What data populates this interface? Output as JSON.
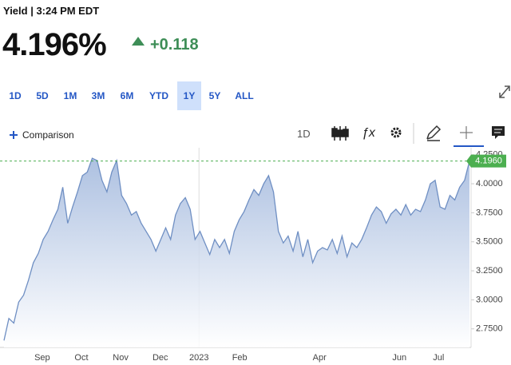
{
  "header": {
    "title": "Yield | 3:24 PM EDT",
    "price": "4.196%",
    "change": "+0.118"
  },
  "ranges": [
    {
      "label": "1D",
      "selected": false
    },
    {
      "label": "5D",
      "selected": false
    },
    {
      "label": "1M",
      "selected": false
    },
    {
      "label": "3M",
      "selected": false
    },
    {
      "label": "6M",
      "selected": false
    },
    {
      "label": "YTD",
      "selected": false
    },
    {
      "label": "1Y",
      "selected": true
    },
    {
      "label": "5Y",
      "selected": false
    },
    {
      "label": "ALL",
      "selected": false
    }
  ],
  "toolbar": {
    "comparison": "Comparison",
    "interval": "1D"
  },
  "chart_data": {
    "type": "area",
    "color": "#6f8fc3",
    "grid": false,
    "values": [
      2.65,
      2.84,
      2.8,
      2.98,
      3.04,
      3.17,
      3.32,
      3.4,
      3.52,
      3.59,
      3.69,
      3.78,
      3.97,
      3.66,
      3.8,
      3.93,
      4.07,
      4.1,
      4.22,
      4.2,
      4.03,
      3.93,
      4.1,
      4.2,
      3.9,
      3.83,
      3.73,
      3.76,
      3.66,
      3.59,
      3.52,
      3.42,
      3.52,
      3.62,
      3.52,
      3.73,
      3.83,
      3.88,
      3.78,
      3.52,
      3.59,
      3.49,
      3.39,
      3.52,
      3.45,
      3.52,
      3.4,
      3.59,
      3.69,
      3.76,
      3.86,
      3.95,
      3.9,
      4.0,
      4.07,
      3.93,
      3.59,
      3.49,
      3.55,
      3.42,
      3.59,
      3.37,
      3.52,
      3.32,
      3.42,
      3.45,
      3.43,
      3.52,
      3.4,
      3.55,
      3.37,
      3.49,
      3.45,
      3.52,
      3.62,
      3.73,
      3.8,
      3.76,
      3.66,
      3.74,
      3.78,
      3.73,
      3.82,
      3.73,
      3.78,
      3.76,
      3.86,
      4.0,
      4.03,
      3.8,
      3.78,
      3.9,
      3.86,
      3.97,
      4.03,
      4.196
    ],
    "xticks": [
      {
        "value": 7.8,
        "label": "Sep"
      },
      {
        "value": 15.8,
        "label": "Oct"
      },
      {
        "value": 23.8,
        "label": "Nov"
      },
      {
        "value": 31.9,
        "label": "Dec"
      },
      {
        "value": 39.8,
        "label": "2023"
      },
      {
        "value": 48.1,
        "label": "Feb"
      },
      {
        "value": 64.4,
        "label": "Apr"
      },
      {
        "value": 80.7,
        "label": "Jun"
      },
      {
        "value": 88.7,
        "label": "Jul"
      }
    ],
    "ylim": [
      2.59,
      4.31
    ],
    "yticks": [
      {
        "value": 2.75,
        "label": "2.7500"
      },
      {
        "value": 3.0,
        "label": "3.0000"
      },
      {
        "value": 3.25,
        "label": "3.2500"
      },
      {
        "value": 3.5,
        "label": "3.5000"
      },
      {
        "value": 3.75,
        "label": "3.7500"
      },
      {
        "value": 4.0,
        "label": "4.0000"
      },
      {
        "value": 4.25,
        "label": "4.2500"
      }
    ],
    "last_price": {
      "value": 4.196,
      "label": "4.1960"
    },
    "last_color": "#4caf50"
  }
}
